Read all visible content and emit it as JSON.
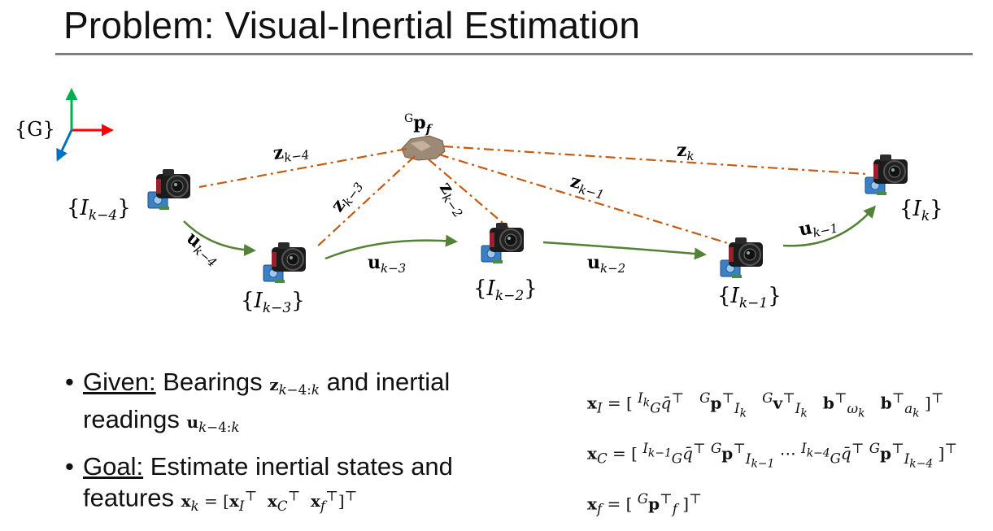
{
  "title": "Problem: Visual-Inertial Estimation",
  "frame_label": "{G}",
  "feature_label": "ᴳp_f",
  "nodes": [
    {
      "id": "I_k-4",
      "label": "{I_{k-4}}"
    },
    {
      "id": "I_k-3",
      "label": "{I_{k-3}}"
    },
    {
      "id": "I_k-2",
      "label": "{I_{k-2}}"
    },
    {
      "id": "I_k-1",
      "label": "{I_{k-1}}"
    },
    {
      "id": "I_k",
      "label": "{I_k}"
    }
  ],
  "bearing_labels": [
    "z_{k-4}",
    "z_{k-3}",
    "z_{k-2}",
    "z_{k-1}",
    "z_k"
  ],
  "inertial_labels": [
    "u_{k-4}",
    "u_{k-3}",
    "u_{k-2}",
    "u_{k-1}"
  ],
  "colors": {
    "bearing": "#c55a11",
    "motion": "#548235",
    "axis_x": "#ff0000",
    "axis_y": "#00b050",
    "axis_z": "#0070c0",
    "rule": "#7f7f7f"
  },
  "bullets": {
    "given_label": "Given:",
    "given_text_1": "Bearings",
    "given_math_1": "z_{k−4:k}",
    "given_text_2": "and inertial readings",
    "given_math_2": "u_{k−4:k}",
    "goal_label": "Goal:",
    "goal_text": "Estimate inertial states and features",
    "goal_math": "x_k = [x_Iᵀ  x_Cᵀ  x_fᵀ]ᵀ"
  },
  "equations": [
    "x_I = [ ᴵᵏ_G q̄ᵀ   ᴳp_{I_k}ᵀ   ᴳv_{I_k}ᵀ   b_{ω_k}ᵀ   b_{a_k}ᵀ ]ᵀ",
    "x_C = [ ᴵᵏ⁻¹_G q̄ᵀ  ᴳp_{I_{k−1}}ᵀ  ⋯  ᴵᵏ⁻⁴_G q̄ᵀ  ᴳp_{I_{k−4}}ᵀ ]ᵀ",
    "x_f = [ ᴳp_fᵀ ]ᵀ"
  ]
}
